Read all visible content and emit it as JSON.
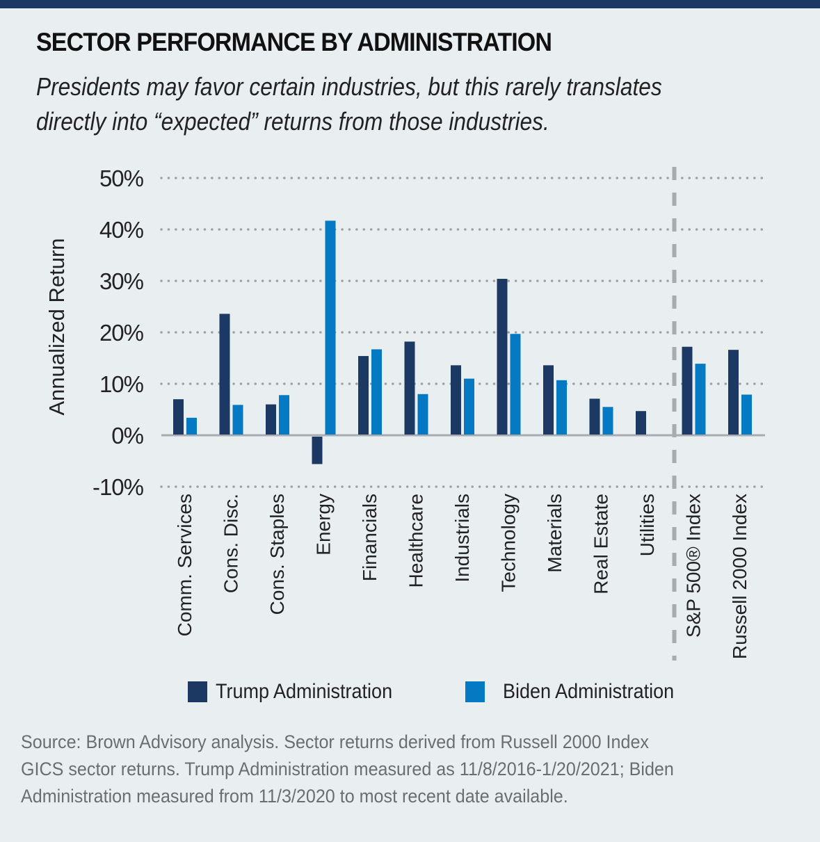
{
  "header": {
    "title": "SECTOR PERFORMANCE BY ADMINISTRATION",
    "subtitle_lines": [
      "Presidents may favor certain industries, but this rarely translates",
      "directly into “expected” returns from those industries."
    ]
  },
  "colors": {
    "topbar": "#1b3963",
    "trump": "#1b3963",
    "biden": "#0579c2",
    "grid": "#9ea2a6",
    "zero_line": "#a8acb0",
    "background": "#e9eef1"
  },
  "legend": {
    "items": [
      {
        "label": "Trump Administration",
        "color": "#1b3963"
      },
      {
        "label": "Biden Administration",
        "color": "#0579c2"
      }
    ]
  },
  "source": {
    "lines": [
      "Source: Brown Advisory analysis. Sector returns derived from Russell 2000 Index",
      "GICS sector returns. Trump Administration measured as 11/8/2016-1/20/2021; Biden",
      "Administration measured from  11/3/2020 to most recent date available."
    ]
  },
  "chart_data": {
    "type": "bar",
    "title": "SECTOR PERFORMANCE BY ADMINISTRATION",
    "xlabel": "",
    "ylabel": "Annualized Return",
    "ylim": [
      -10,
      50
    ],
    "yticks": [
      50,
      40,
      30,
      20,
      10,
      0,
      -10
    ],
    "ytick_labels": [
      "50%",
      "40%",
      "30%",
      "20%",
      "10%",
      "0%",
      "-10%"
    ],
    "grid": true,
    "legend_position": "bottom",
    "categories": [
      "Comm. Services",
      "Cons. Disc.",
      "Cons. Staples",
      "Energy",
      "Financials",
      "Healthcare",
      "Industrials",
      "Technology",
      "Materials",
      "Real Estate",
      "Utilities",
      "S&P 500® Index",
      "Russell 2000 Index"
    ],
    "separator_after_category_index": 10,
    "series": [
      {
        "name": "Trump Administration",
        "color": "#1b3963",
        "values": [
          7.0,
          23.6,
          6.0,
          -5.6,
          15.4,
          18.2,
          13.6,
          30.4,
          13.6,
          7.1,
          4.7,
          17.2,
          16.6
        ]
      },
      {
        "name": "Biden Administration",
        "color": "#0579c2",
        "values": [
          3.4,
          5.9,
          7.8,
          41.7,
          16.7,
          8.0,
          11.0,
          19.7,
          10.7,
          5.5,
          null,
          13.9,
          7.9
        ]
      }
    ]
  }
}
